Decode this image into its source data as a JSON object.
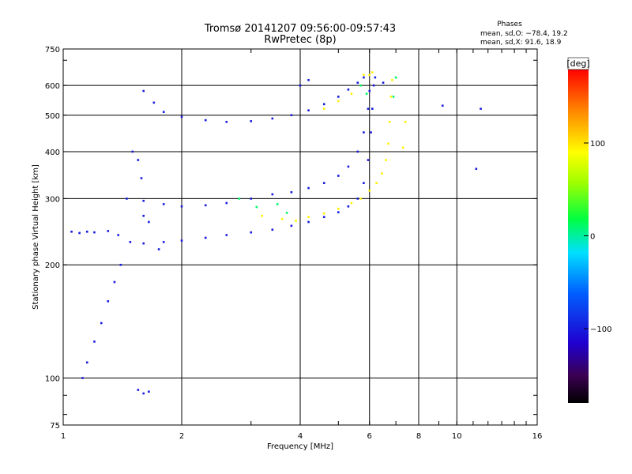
{
  "chart_data": {
    "type": "scatter",
    "title": "Tromsø 20141207 09:56:00-09:57:43",
    "subtitle": "RwPretec (8p)",
    "xlabel": "Frequency [MHz]",
    "ylabel": "Stationary phase Virtual Height [km]",
    "x_scale": "log",
    "y_scale": "log",
    "xlim": [
      1,
      16
    ],
    "ylim": [
      75,
      750
    ],
    "x_ticks": [
      1,
      2,
      4,
      6,
      8,
      10,
      16
    ],
    "x_tick_labels": [
      "1",
      "2",
      "4",
      "6",
      "8",
      "10",
      "16"
    ],
    "y_ticks": [
      75,
      100,
      200,
      300,
      400,
      500,
      600,
      750
    ],
    "y_tick_labels": [
      "75",
      "100",
      "200",
      "300",
      "400",
      "500",
      "600",
      "750"
    ],
    "grid": true,
    "phase_box": {
      "title": "Phases",
      "line_o": "mean, sd,O: −78.4, 19.2",
      "line_x": "mean, sd,X:  91.6, 18.9"
    },
    "colorbar": {
      "label": "[deg]",
      "range": [
        -180,
        180
      ],
      "ticks": [
        100,
        0,
        -100
      ],
      "tick_labels": [
        "100",
        "0",
        "−100"
      ]
    },
    "colors": {
      "grid": "#000000",
      "background": "#ffffff",
      "o_trace": "#1a4fe0",
      "x_trace": "#e8e000"
    },
    "series": [
      {
        "mode": "O",
        "phase_deg": -100,
        "points": [
          [
            1.05,
            245
          ],
          [
            1.1,
            243
          ],
          [
            1.15,
            245
          ],
          [
            1.2,
            244
          ],
          [
            1.3,
            246
          ],
          [
            1.38,
            240
          ],
          [
            1.48,
            230
          ],
          [
            1.6,
            228
          ],
          [
            1.8,
            230
          ],
          [
            2.0,
            232
          ],
          [
            2.3,
            236
          ],
          [
            2.6,
            240
          ],
          [
            3.0,
            244
          ],
          [
            3.4,
            248
          ],
          [
            3.8,
            254
          ],
          [
            4.2,
            260
          ],
          [
            4.6,
            268
          ],
          [
            5.0,
            276
          ],
          [
            5.3,
            286
          ],
          [
            5.6,
            300
          ],
          [
            5.8,
            330
          ],
          [
            5.95,
            380
          ],
          [
            6.05,
            450
          ],
          [
            6.1,
            520
          ],
          [
            6.15,
            600
          ],
          [
            6.2,
            630
          ],
          [
            1.45,
            300
          ],
          [
            1.6,
            296
          ],
          [
            1.8,
            290
          ],
          [
            2.0,
            286
          ],
          [
            2.3,
            288
          ],
          [
            2.6,
            292
          ],
          [
            3.0,
            300
          ],
          [
            3.4,
            308
          ],
          [
            3.8,
            312
          ],
          [
            4.2,
            320
          ],
          [
            4.6,
            330
          ],
          [
            5.0,
            345
          ],
          [
            5.3,
            365
          ],
          [
            5.6,
            400
          ],
          [
            5.8,
            450
          ],
          [
            5.95,
            520
          ],
          [
            6.0,
            580
          ],
          [
            1.6,
            580
          ],
          [
            1.7,
            540
          ],
          [
            1.8,
            510
          ],
          [
            2.0,
            495
          ],
          [
            2.3,
            485
          ],
          [
            2.6,
            480
          ],
          [
            3.0,
            482
          ],
          [
            3.4,
            490
          ],
          [
            3.8,
            500
          ],
          [
            4.2,
            515
          ],
          [
            4.6,
            535
          ],
          [
            5.0,
            560
          ],
          [
            5.3,
            585
          ],
          [
            5.6,
            610
          ],
          [
            5.8,
            630
          ],
          [
            1.4,
            200
          ],
          [
            1.35,
            180
          ],
          [
            1.3,
            160
          ],
          [
            1.25,
            140
          ],
          [
            1.2,
            125
          ],
          [
            1.15,
            110
          ],
          [
            1.12,
            100
          ],
          [
            1.55,
            380
          ],
          [
            1.5,
            400
          ],
          [
            1.58,
            340
          ],
          [
            1.6,
            270
          ],
          [
            1.65,
            260
          ],
          [
            1.55,
            93
          ],
          [
            1.6,
            91
          ],
          [
            1.65,
            92
          ],
          [
            4.0,
            600
          ],
          [
            4.2,
            620
          ],
          [
            6.5,
            610
          ],
          [
            9.2,
            530
          ],
          [
            11.5,
            520
          ],
          [
            11.2,
            360
          ],
          [
            1.75,
            220
          ]
        ]
      },
      {
        "mode": "X",
        "phase_deg": 95,
        "points": [
          [
            4.2,
            268
          ],
          [
            4.6,
            274
          ],
          [
            5.0,
            282
          ],
          [
            5.4,
            292
          ],
          [
            5.7,
            300
          ],
          [
            6.0,
            315
          ],
          [
            6.25,
            330
          ],
          [
            6.45,
            350
          ],
          [
            6.6,
            380
          ],
          [
            6.7,
            420
          ],
          [
            6.75,
            480
          ],
          [
            6.8,
            560
          ],
          [
            6.85,
            620
          ],
          [
            4.6,
            520
          ],
          [
            5.0,
            545
          ],
          [
            5.4,
            570
          ],
          [
            5.7,
            600
          ],
          [
            6.0,
            640
          ],
          [
            3.2,
            270
          ],
          [
            3.6,
            265
          ],
          [
            3.9,
            262
          ],
          [
            5.8,
            640
          ],
          [
            6.1,
            650
          ],
          [
            7.3,
            410
          ],
          [
            7.4,
            480
          ]
        ]
      },
      {
        "mode": "mixed",
        "phase_deg": 10,
        "points": [
          [
            2.8,
            300
          ],
          [
            3.1,
            285
          ],
          [
            3.5,
            290
          ],
          [
            3.7,
            275
          ],
          [
            6.9,
            560
          ],
          [
            7.0,
            630
          ],
          [
            5.7,
            600
          ],
          [
            5.9,
            570
          ]
        ]
      }
    ]
  }
}
